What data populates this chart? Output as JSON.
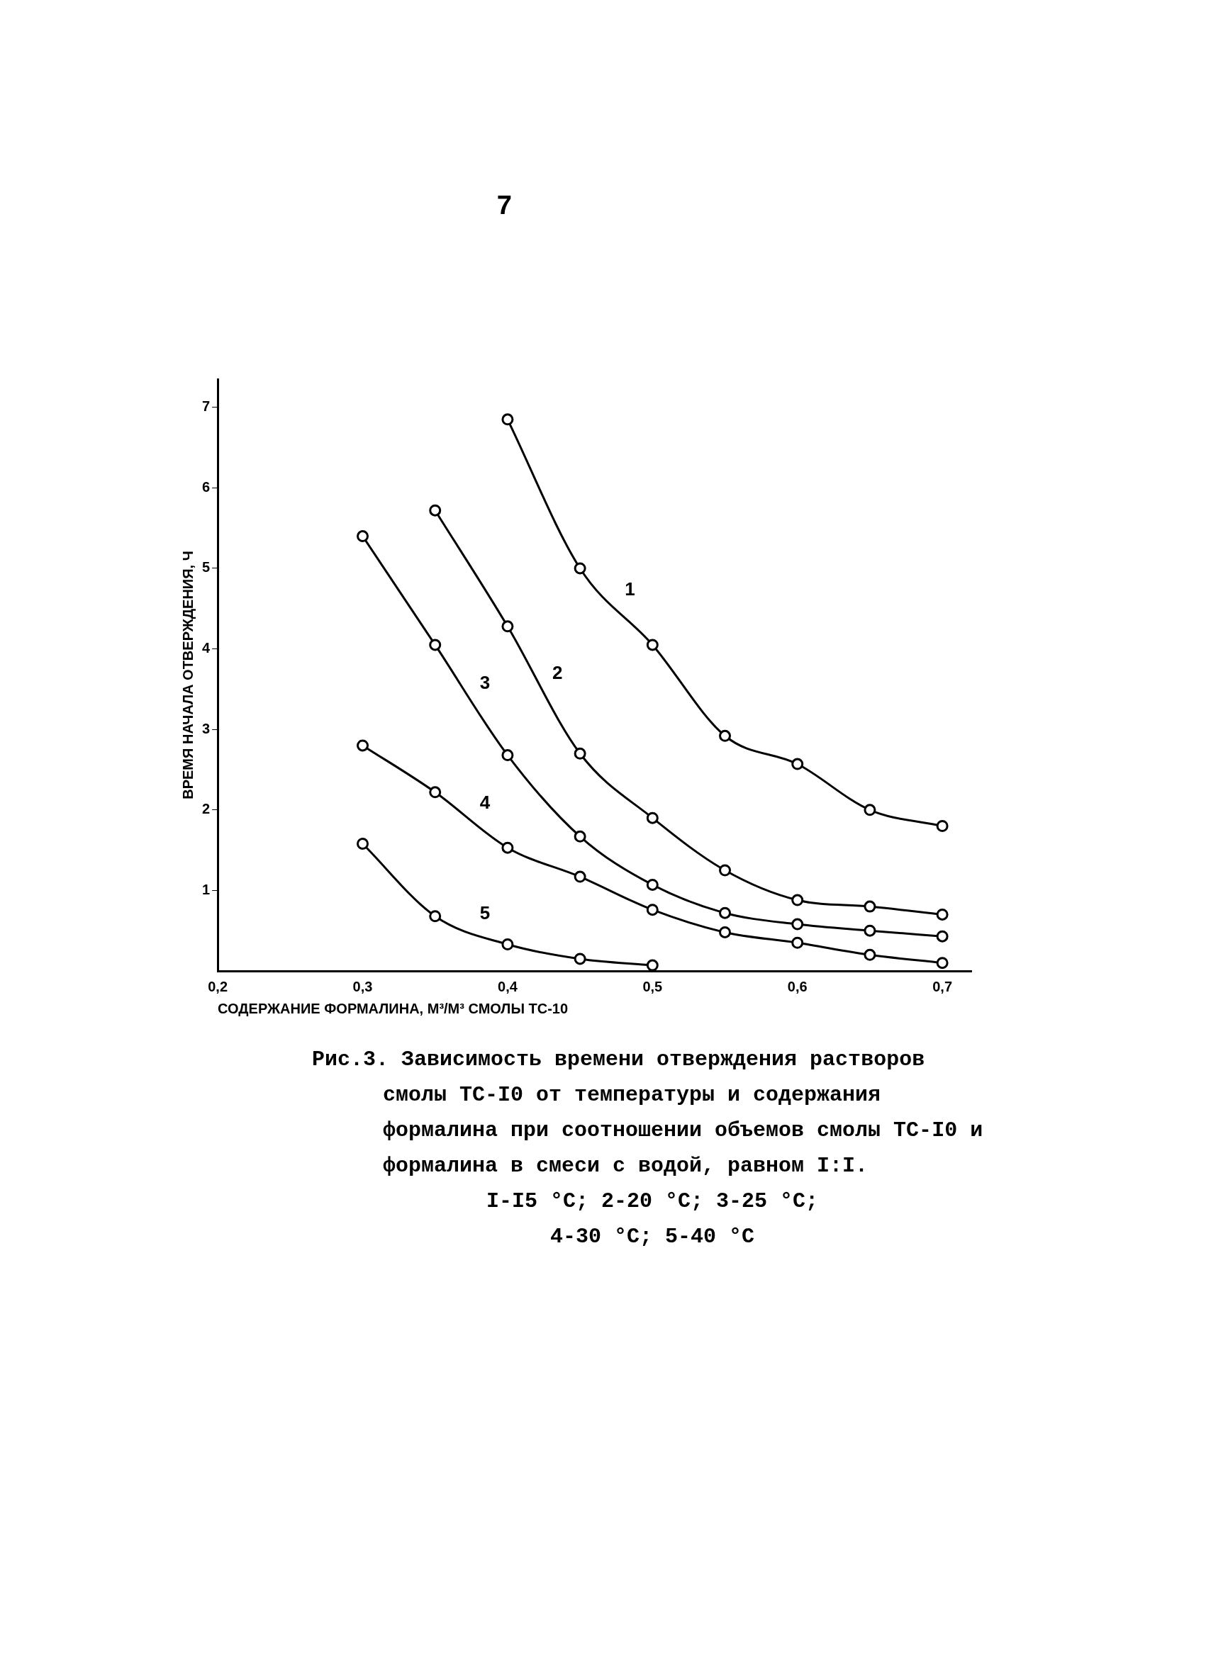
{
  "chart_data": {
    "type": "line",
    "title": "Рис.3. Зависимость времени отверждения растворов смолы ТС-I0 от температуры и содержания формалина при соотношении объемов смолы ТС-I0 и формалина в смеси с водой, равном I:I.",
    "xlabel": "СОДЕРЖАНИЕ ФОРМАЛИНА, М³/М³ СМОЛЫ ТС-10",
    "ylabel": "ВРЕМЯ НАЧАЛА ОТВЕРЖДЕНИЯ, Ч",
    "annotations": [
      "7",
      "I-I5 °C;  2-20 °C;  3-25 °C;",
      "4-30 °C;  5-40 °C"
    ],
    "xlim": [
      0.2,
      0.72
    ],
    "xticks": [
      {
        "value": 0.2,
        "label": "0,2"
      },
      {
        "value": 0.3,
        "label": "0,3"
      },
      {
        "value": 0.4,
        "label": "0,4"
      },
      {
        "value": 0.5,
        "label": "0,5"
      },
      {
        "value": 0.6,
        "label": "0,6"
      },
      {
        "value": 0.7,
        "label": "0,7"
      }
    ],
    "ylim": [
      0,
      7.35
    ],
    "yticks": [
      1,
      2,
      3,
      4,
      5,
      6,
      7
    ],
    "grid": false,
    "legend": false,
    "marker": "circle",
    "line_style": "solid",
    "series": [
      {
        "name": "1",
        "color": "#000000",
        "x": [
          0.4,
          0.45,
          0.5,
          0.55,
          0.6,
          0.65,
          0.7
        ],
        "values": [
          6.85,
          5.0,
          4.05,
          2.92,
          2.57,
          2.0,
          1.8
        ]
      },
      {
        "name": "2",
        "color": "#000000",
        "x": [
          0.35,
          0.4,
          0.45,
          0.5,
          0.55,
          0.6,
          0.65,
          0.7
        ],
        "values": [
          5.72,
          4.28,
          2.7,
          1.9,
          1.25,
          0.88,
          0.8,
          0.7
        ]
      },
      {
        "name": "3",
        "color": "#000000",
        "x": [
          0.3,
          0.35,
          0.4,
          0.45,
          0.5,
          0.55,
          0.6,
          0.65,
          0.7
        ],
        "values": [
          5.4,
          4.05,
          2.68,
          1.67,
          1.07,
          0.72,
          0.58,
          0.5,
          0.43
        ]
      },
      {
        "name": "4",
        "color": "#000000",
        "x": [
          0.3,
          0.35,
          0.4,
          0.45,
          0.5,
          0.55,
          0.6,
          0.65,
          0.7
        ],
        "values": [
          2.8,
          2.22,
          1.53,
          1.17,
          0.76,
          0.48,
          0.35,
          0.2,
          0.1
        ]
      },
      {
        "name": "5",
        "color": "#000000",
        "x": [
          0.3,
          0.35,
          0.4,
          0.45,
          0.5
        ],
        "values": [
          1.58,
          0.68,
          0.33,
          0.15,
          0.07
        ]
      }
    ]
  }
}
